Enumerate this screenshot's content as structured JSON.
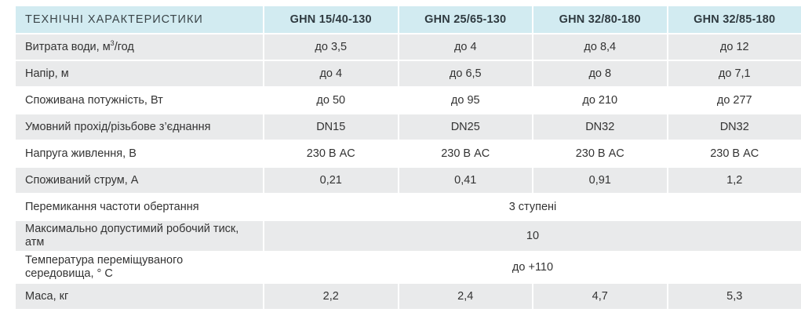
{
  "header": {
    "characteristics": "ТЕХНІЧНІ ХАРАКТЕРИСТИКИ",
    "models": [
      "GHN 15/40-130",
      "GHN 25/65-130",
      "GHN 32/80-180",
      "GHN 32/85-180"
    ]
  },
  "rows": [
    {
      "label": "Витрата води, м",
      "label_sup": "3",
      "label_tail": "/год",
      "values": [
        "до 3,5",
        "до 4",
        "до 8,4",
        "до 12"
      ]
    },
    {
      "label": "Напір, м",
      "values": [
        "до 4",
        "до 6,5",
        "до 8",
        "до 7,1"
      ]
    },
    {
      "label": "Споживана потужність, Вт",
      "values": [
        "до 50",
        "до 95",
        "до 210",
        "до 277"
      ]
    },
    {
      "label": "Умовний прохід/різьбове з’єднання",
      "values": [
        "DN15",
        "DN25",
        "DN32",
        "DN32"
      ]
    },
    {
      "label": "Напруга живлення, В",
      "values": [
        "230 В AC",
        "230 В AC",
        "230 В AC",
        "230 В AC"
      ]
    },
    {
      "label": "Споживаний струм, А",
      "values": [
        "0,21",
        "0,41",
        "0,91",
        "1,2"
      ]
    },
    {
      "label": "Перемикання частоти обертання",
      "merged_value": "3 ступені"
    },
    {
      "label": "Максимально допустимий робочий тиск, атм",
      "merged_value": "10"
    },
    {
      "label": "Температура переміщуваного середовища, ° С",
      "merged_value": "до +110"
    },
    {
      "label": "Маса, кг",
      "values": [
        "2,2",
        "2,4",
        "4,7",
        "5,3"
      ]
    }
  ]
}
